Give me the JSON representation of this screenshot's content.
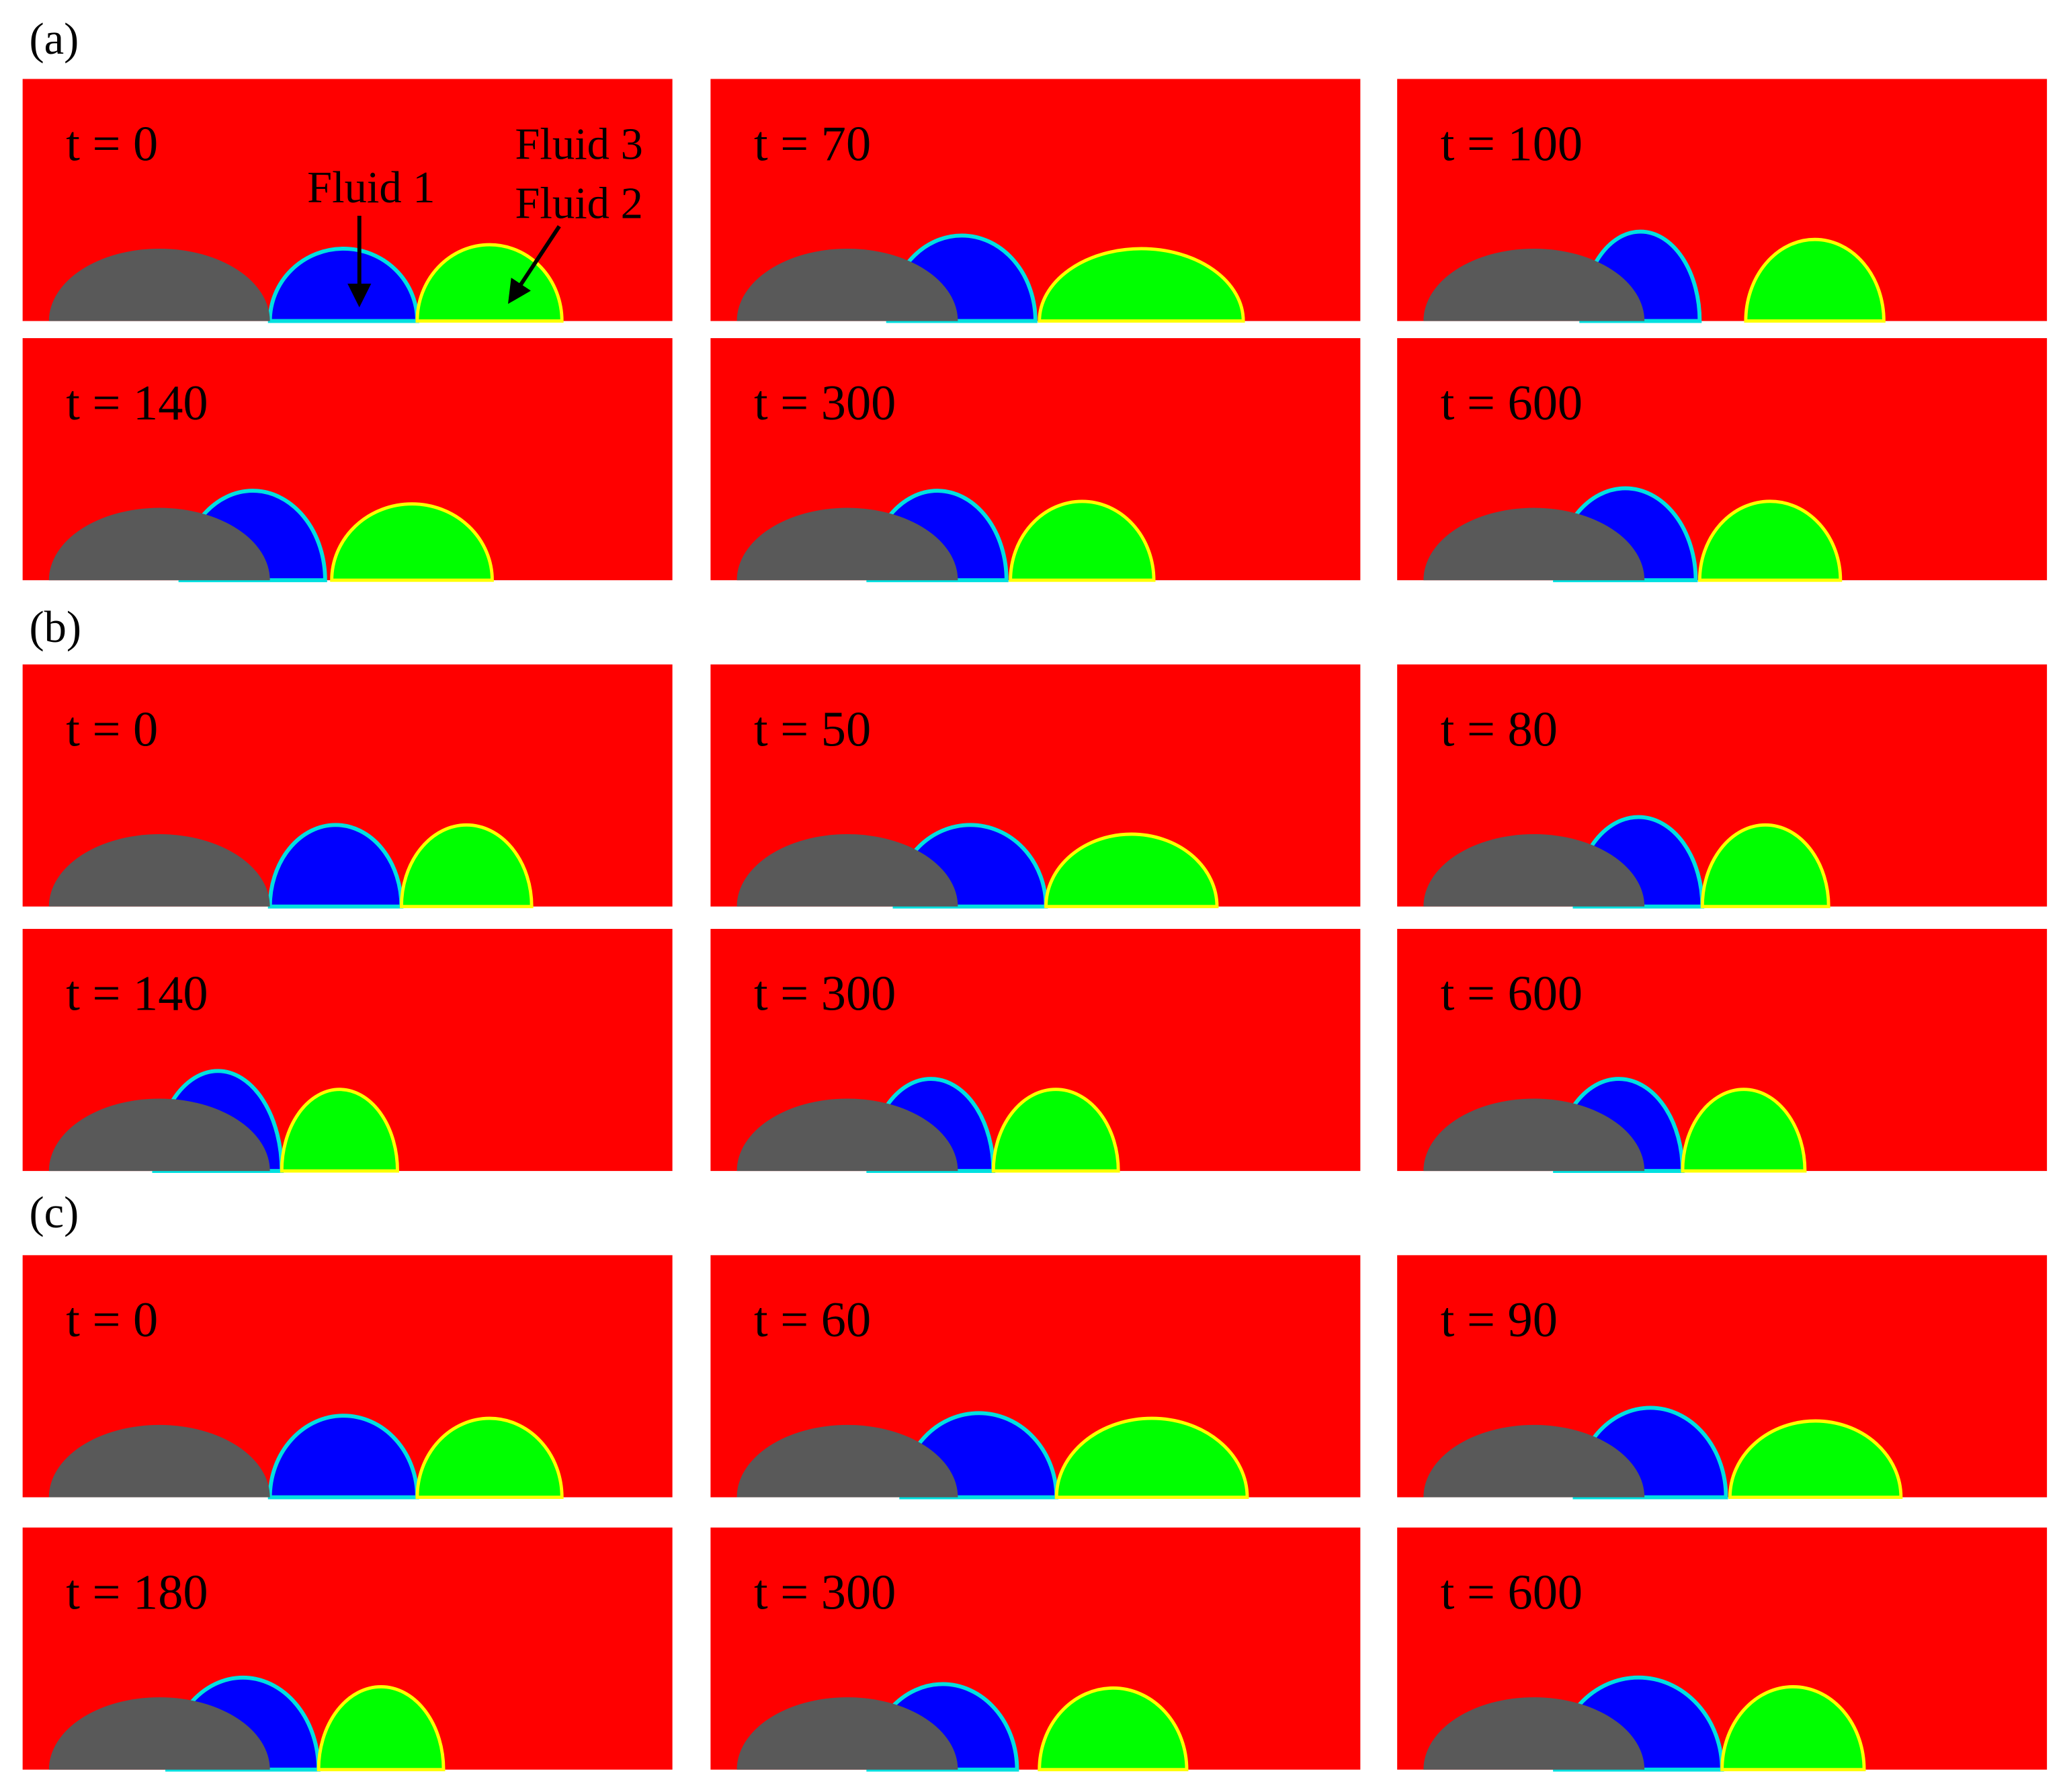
{
  "figure": {
    "groups": [
      {
        "label": "(a)",
        "frames": [
          "t = 0",
          "t = 70",
          "t = 100",
          "t = 140",
          "t = 300",
          "t = 600"
        ]
      },
      {
        "label": "(b)",
        "frames": [
          "t = 0",
          "t = 50",
          "t = 80",
          "t = 140",
          "t = 300",
          "t = 600"
        ]
      },
      {
        "label": "(c)",
        "frames": [
          "t = 0",
          "t = 60",
          "t = 90",
          "t = 180",
          "t = 300",
          "t = 600"
        ]
      }
    ],
    "annotations": {
      "fluid_1": "Fluid 1",
      "fluid_3": "Fluid 3",
      "fluid_2": "Fluid 2"
    }
  }
}
